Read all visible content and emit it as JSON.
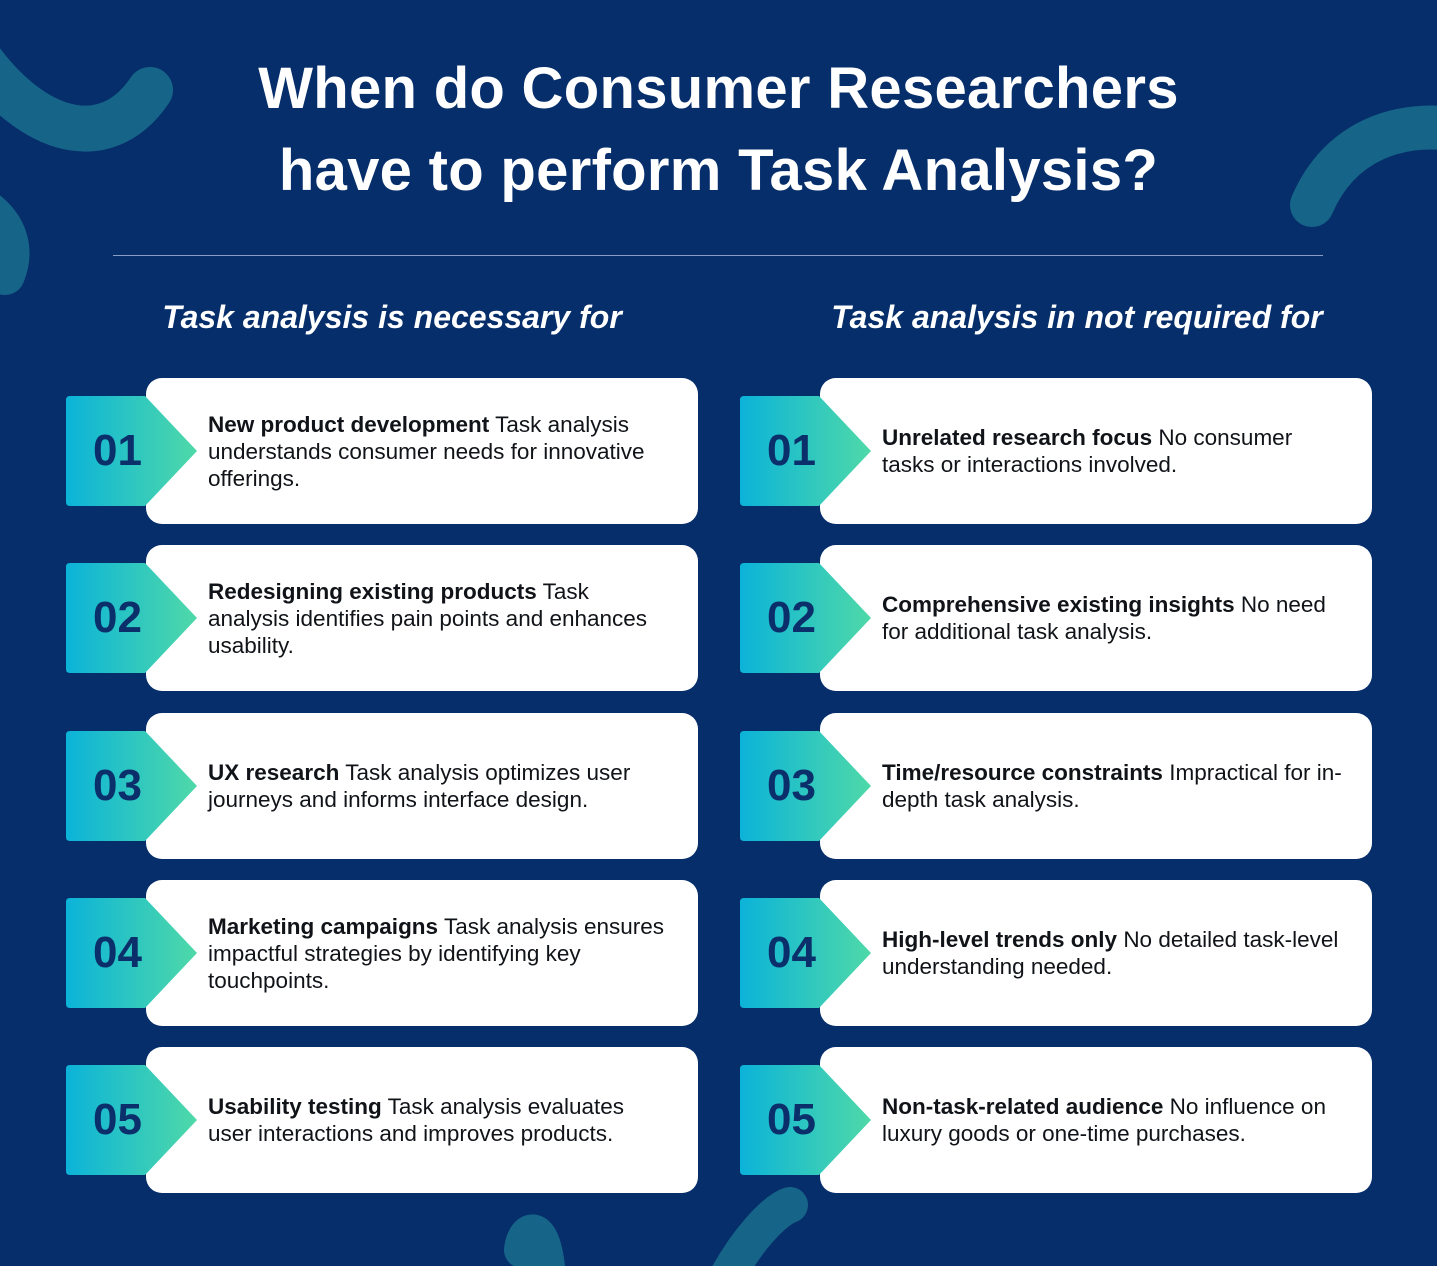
{
  "title": {
    "line1": "When do Consumer Researchers",
    "line2": "have to perform Task Analysis?"
  },
  "colors": {
    "background": "#062e6b",
    "card": "#ffffff",
    "badge_gradient_start": "#0bb3d9",
    "badge_gradient_end": "#4fd9a8",
    "number": "#0b2f6a",
    "decoration": "#1a6f8e"
  },
  "columns": [
    {
      "heading": "Task analysis is necessary for",
      "items": [
        {
          "number": "01",
          "title": "New product development",
          "text": "Task analysis understands consumer needs for innovative offerings."
        },
        {
          "number": "02",
          "title": "Redesigning existing products",
          "text": "Task analysis identifies pain points and enhances usability."
        },
        {
          "number": "03",
          "title": "UX research",
          "text": "Task analysis optimizes user journeys and informs interface design."
        },
        {
          "number": "04",
          "title": "Marketing campaigns",
          "text": "Task analysis ensures impactful strategies by identifying key touchpoints."
        },
        {
          "number": "05",
          "title": "Usability testing",
          "text": "Task analysis evaluates user interactions and improves products."
        }
      ]
    },
    {
      "heading": "Task analysis in not required for",
      "items": [
        {
          "number": "01",
          "title": "Unrelated research focus",
          "text": "No consumer tasks or interactions involved."
        },
        {
          "number": "02",
          "title": "Comprehensive existing insights",
          "text": "No need for additional task analysis."
        },
        {
          "number": "03",
          "title": "Time/resource constraints",
          "text": "Impractical for in-depth task analysis."
        },
        {
          "number": "04",
          "title": "High-level trends only",
          "text": "No detailed task-level understanding needed."
        },
        {
          "number": "05",
          "title": "Non-task-related audience",
          "text": "No influence on luxury goods or one-time purchases."
        }
      ]
    }
  ]
}
